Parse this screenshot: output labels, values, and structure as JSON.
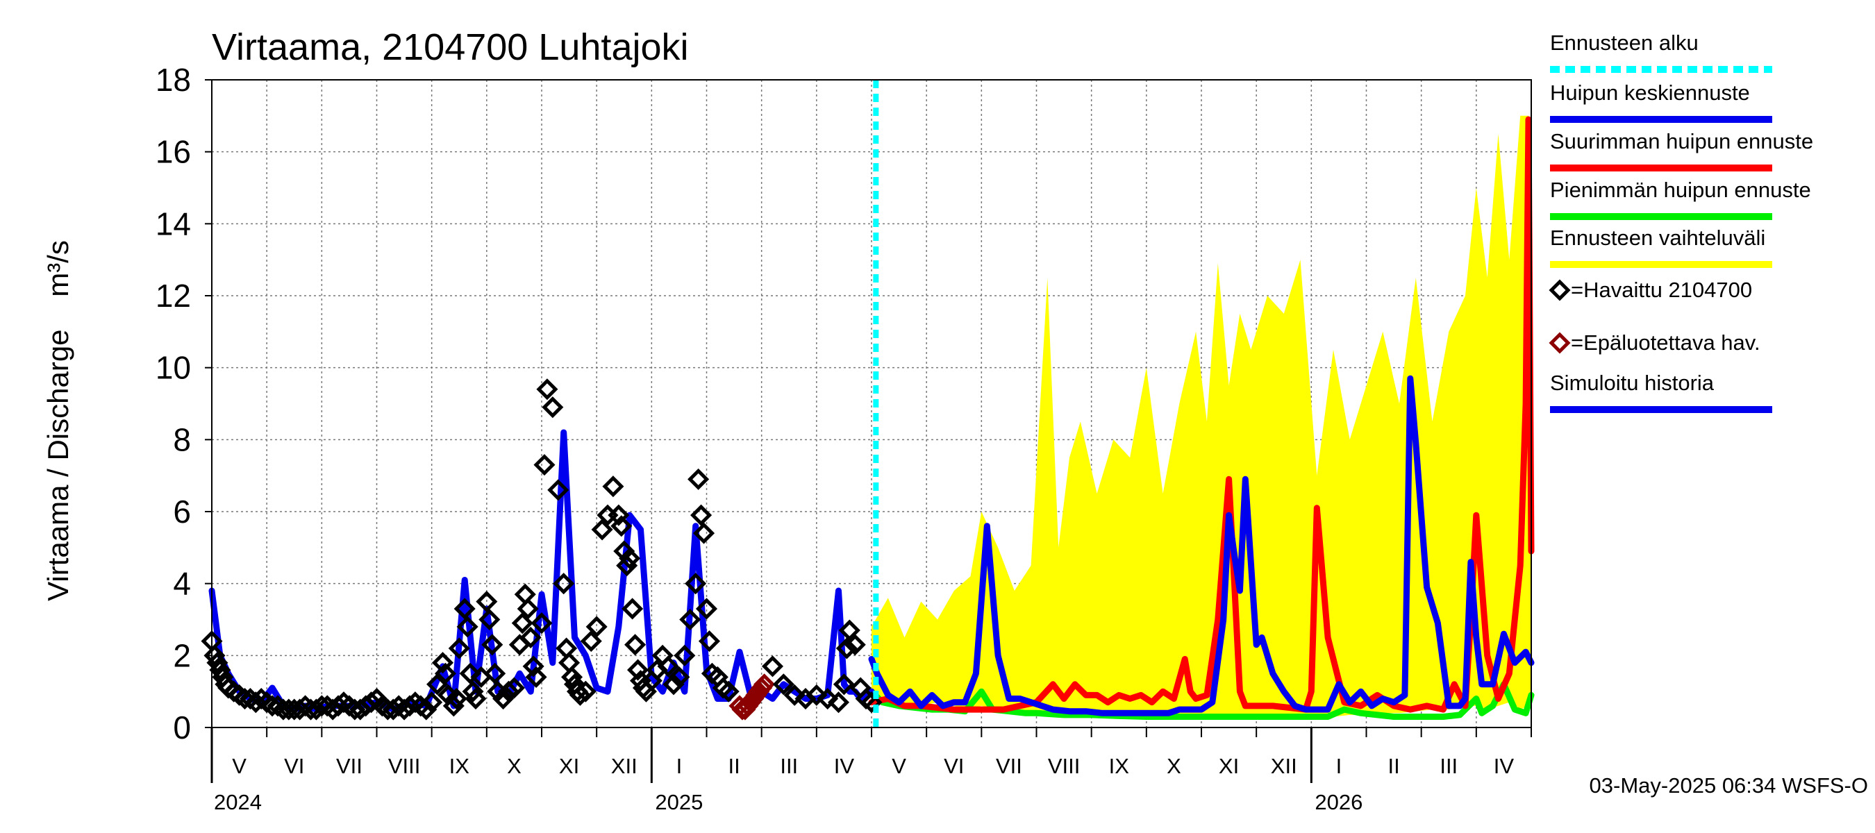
{
  "chart_data": {
    "type": "area",
    "title": "Virtaama, 2104700 Luhtajoki",
    "ylabel": "Virtaama / Discharge    m³/s",
    "ylim": [
      0,
      18
    ],
    "yticks": [
      0,
      2,
      4,
      6,
      8,
      10,
      12,
      14,
      16,
      18
    ],
    "x_unit": "months since 2024-04-01",
    "xlim": [
      0,
      24
    ],
    "forecast_start": 12.08,
    "month_labels": [
      {
        "label": "V",
        "center": 0.5
      },
      {
        "label": "VI",
        "center": 1.5
      },
      {
        "label": "VII",
        "center": 2.5
      },
      {
        "label": "VIII",
        "center": 3.5
      },
      {
        "label": "IX",
        "center": 4.5
      },
      {
        "label": "X",
        "center": 5.5
      },
      {
        "label": "XI",
        "center": 6.5
      },
      {
        "label": "XII",
        "center": 7.5
      },
      {
        "label": "I",
        "center": 8.5
      },
      {
        "label": "II",
        "center": 9.5
      },
      {
        "label": "III",
        "center": 10.5
      },
      {
        "label": "IV",
        "center": 11.5
      },
      {
        "label": "V",
        "center": 12.5
      },
      {
        "label": "VI",
        "center": 13.5
      },
      {
        "label": "VII",
        "center": 14.5
      },
      {
        "label": "VIII",
        "center": 15.5
      },
      {
        "label": "IX",
        "center": 16.5
      },
      {
        "label": "X",
        "center": 17.5
      },
      {
        "label": "XI",
        "center": 18.5
      },
      {
        "label": "XII",
        "center": 19.5
      },
      {
        "label": "I",
        "center": 20.5
      },
      {
        "label": "II",
        "center": 21.5
      },
      {
        "label": "III",
        "center": 22.5
      },
      {
        "label": "IV",
        "center": 23.5
      }
    ],
    "year_labels": [
      {
        "label": "2024",
        "at": 0
      },
      {
        "label": "2025",
        "at": 8.5
      },
      {
        "label": "2026",
        "at": 20.5
      }
    ],
    "year_boundaries": [
      8.0,
      20.0
    ],
    "series": [
      {
        "name": "Ennusteen vaihteluväli",
        "kind": "band",
        "color": "#ffff00",
        "x": [
          12.0,
          12.3,
          12.6,
          12.9,
          13.2,
          13.5,
          13.8,
          14.0,
          14.3,
          14.6,
          14.9,
          15.2,
          15.4,
          15.6,
          15.8,
          16.1,
          16.4,
          16.7,
          17.0,
          17.3,
          17.6,
          17.9,
          18.1,
          18.3,
          18.5,
          18.7,
          18.9,
          19.2,
          19.5,
          19.8,
          20.1,
          20.4,
          20.7,
          21.0,
          21.3,
          21.6,
          21.9,
          22.2,
          22.5,
          22.8,
          23.0,
          23.2,
          23.4,
          23.6,
          23.8,
          23.95,
          24.0
        ],
        "upper": [
          2.8,
          3.6,
          2.5,
          3.5,
          3.0,
          3.8,
          4.2,
          6.0,
          5.0,
          3.8,
          4.5,
          12.5,
          5.0,
          7.5,
          8.5,
          6.5,
          8.0,
          7.5,
          10.0,
          6.5,
          9.0,
          11.0,
          8.5,
          12.9,
          9.5,
          11.5,
          10.5,
          12.0,
          11.5,
          13.0,
          7.0,
          10.5,
          8.0,
          9.5,
          11.0,
          9.0,
          12.5,
          8.5,
          11.0,
          12.0,
          15.0,
          12.5,
          16.5,
          13.0,
          17.0,
          17.0,
          16.5
        ],
        "lower": [
          0.9,
          0.7,
          0.6,
          0.6,
          0.7,
          0.6,
          0.5,
          0.6,
          0.5,
          0.5,
          0.4,
          0.4,
          0.4,
          0.4,
          0.35,
          0.35,
          0.35,
          0.3,
          0.3,
          0.3,
          0.3,
          0.3,
          0.3,
          0.3,
          0.3,
          0.3,
          0.3,
          0.3,
          0.3,
          0.3,
          0.3,
          0.3,
          0.35,
          0.35,
          0.4,
          0.4,
          0.45,
          0.5,
          0.5,
          0.6,
          0.6,
          0.5,
          0.6,
          0.7,
          0.5,
          0.6,
          0.7
        ]
      },
      {
        "name": "Pienimmän huipun ennuste",
        "kind": "line",
        "color": "#00ee00",
        "x": [
          12.0,
          12.2,
          12.5,
          12.8,
          13.1,
          13.4,
          13.7,
          14.0,
          14.2,
          14.5,
          14.8,
          15.0,
          15.5,
          16.0,
          16.5,
          17.0,
          17.5,
          18.0,
          18.5,
          19.0,
          19.5,
          20.0,
          20.3,
          20.6,
          20.9,
          21.2,
          21.5,
          21.8,
          22.1,
          22.4,
          22.7,
          23.0,
          23.1,
          23.3,
          23.5,
          23.7,
          23.9,
          24.0
        ],
        "y": [
          1.0,
          0.7,
          0.6,
          0.55,
          0.5,
          0.5,
          0.45,
          1.0,
          0.5,
          0.45,
          0.4,
          0.4,
          0.35,
          0.35,
          0.32,
          0.3,
          0.3,
          0.3,
          0.3,
          0.3,
          0.3,
          0.3,
          0.3,
          0.5,
          0.4,
          0.35,
          0.3,
          0.3,
          0.3,
          0.3,
          0.35,
          0.8,
          0.4,
          0.6,
          1.2,
          0.5,
          0.4,
          0.9
        ]
      },
      {
        "name": "Suurimman huipun ennuste",
        "kind": "line",
        "color": "#ff0000",
        "x": [
          12.0,
          12.3,
          12.6,
          12.9,
          13.2,
          13.5,
          13.8,
          14.1,
          14.4,
          14.7,
          15.0,
          15.3,
          15.5,
          15.7,
          15.9,
          16.1,
          16.3,
          16.5,
          16.7,
          16.9,
          17.1,
          17.3,
          17.5,
          17.7,
          17.8,
          17.9,
          18.1,
          18.3,
          18.5,
          18.6,
          18.7,
          18.8,
          19.0,
          19.3,
          19.6,
          19.9,
          20.0,
          20.1,
          20.3,
          20.6,
          20.9,
          21.2,
          21.5,
          21.8,
          22.1,
          22.4,
          22.6,
          22.8,
          22.9,
          23.0,
          23.2,
          23.4,
          23.6,
          23.8,
          23.9,
          23.95,
          24.0
        ],
        "y": [
          0.7,
          0.8,
          0.6,
          0.6,
          0.55,
          0.5,
          0.5,
          0.5,
          0.5,
          0.6,
          0.7,
          1.2,
          0.8,
          1.2,
          0.9,
          0.9,
          0.7,
          0.9,
          0.8,
          0.9,
          0.7,
          1.0,
          0.8,
          1.9,
          1.0,
          0.8,
          0.9,
          3.0,
          6.9,
          4.0,
          1.0,
          0.6,
          0.6,
          0.6,
          0.55,
          0.5,
          1.0,
          6.1,
          2.5,
          0.7,
          0.6,
          0.9,
          0.6,
          0.5,
          0.6,
          0.5,
          1.2,
          0.6,
          3.0,
          5.9,
          2.0,
          0.8,
          1.5,
          4.5,
          9.0,
          16.9,
          4.9
        ]
      },
      {
        "name": "Huipun keskiennuste",
        "kind": "line",
        "color": "#0000ee",
        "x": [
          12.0,
          12.1,
          12.3,
          12.5,
          12.7,
          12.9,
          13.1,
          13.3,
          13.5,
          13.7,
          13.9,
          14.1,
          14.3,
          14.5,
          14.7,
          14.9,
          15.1,
          15.3,
          15.6,
          15.9,
          16.2,
          16.5,
          16.8,
          17.1,
          17.4,
          17.6,
          17.8,
          18.0,
          18.2,
          18.4,
          18.5,
          18.6,
          18.7,
          18.8,
          19.0,
          19.1,
          19.3,
          19.5,
          19.7,
          19.9,
          20.1,
          20.3,
          20.5,
          20.7,
          20.9,
          21.1,
          21.3,
          21.5,
          21.6,
          21.7,
          21.8,
          21.9,
          22.1,
          22.3,
          22.5,
          22.7,
          22.8,
          22.9,
          23.0,
          23.1,
          23.3,
          23.5,
          23.7,
          23.9,
          24.0
        ],
        "y": [
          1.9,
          1.5,
          0.9,
          0.7,
          1.0,
          0.6,
          0.9,
          0.6,
          0.7,
          0.7,
          1.5,
          5.6,
          2.0,
          0.8,
          0.8,
          0.7,
          0.6,
          0.5,
          0.45,
          0.45,
          0.4,
          0.4,
          0.4,
          0.4,
          0.4,
          0.5,
          0.5,
          0.5,
          0.7,
          3.0,
          5.9,
          4.8,
          3.8,
          6.9,
          2.3,
          2.5,
          1.5,
          1.0,
          0.6,
          0.5,
          0.5,
          0.5,
          1.2,
          0.7,
          1.0,
          0.6,
          0.8,
          0.7,
          0.8,
          0.9,
          9.7,
          7.9,
          3.9,
          2.9,
          0.6,
          0.6,
          0.8,
          4.6,
          2.5,
          1.2,
          1.2,
          2.6,
          1.8,
          2.1,
          1.8
        ]
      },
      {
        "name": "Simuloitu historia",
        "kind": "line",
        "color": "#0000ee",
        "x": [
          0.0,
          0.15,
          0.3,
          0.5,
          0.7,
          0.9,
          1.1,
          1.3,
          1.5,
          1.7,
          1.9,
          2.1,
          2.4,
          2.7,
          3.0,
          3.3,
          3.6,
          3.9,
          4.2,
          4.4,
          4.6,
          4.8,
          5.0,
          5.2,
          5.4,
          5.6,
          5.8,
          6.0,
          6.2,
          6.4,
          6.6,
          6.8,
          7.0,
          7.2,
          7.4,
          7.6,
          7.8,
          8.0,
          8.2,
          8.4,
          8.6,
          8.8,
          9.0,
          9.2,
          9.4,
          9.6,
          9.8,
          10.0,
          10.2,
          10.4,
          10.6,
          10.8,
          11.0,
          11.2,
          11.4,
          11.5,
          11.6,
          11.7,
          11.8,
          12.0
        ],
        "y": [
          3.8,
          2.0,
          1.5,
          1.0,
          0.8,
          0.7,
          1.1,
          0.6,
          0.5,
          0.6,
          0.5,
          0.6,
          0.6,
          0.6,
          0.7,
          0.5,
          0.7,
          0.6,
          1.7,
          0.6,
          4.1,
          1.0,
          3.3,
          1.0,
          0.9,
          1.5,
          1.0,
          3.7,
          1.8,
          8.2,
          2.5,
          2.0,
          1.1,
          1.0,
          2.8,
          5.9,
          5.5,
          1.4,
          1.0,
          1.8,
          1.0,
          5.6,
          1.6,
          0.8,
          0.8,
          2.1,
          0.9,
          1.0,
          0.8,
          1.2,
          1.0,
          0.8,
          0.8,
          0.9,
          3.8,
          1.2,
          1.0,
          1.0,
          0.8,
          1.0
        ]
      },
      {
        "name": "Havaittu 2104700",
        "kind": "markers",
        "color": "#000000",
        "x": [
          0.0,
          0.05,
          0.1,
          0.15,
          0.2,
          0.25,
          0.3,
          0.4,
          0.5,
          0.6,
          0.7,
          0.8,
          0.9,
          1.0,
          1.1,
          1.2,
          1.3,
          1.4,
          1.5,
          1.6,
          1.7,
          1.8,
          1.9,
          2.0,
          2.1,
          2.2,
          2.3,
          2.4,
          2.5,
          2.6,
          2.7,
          2.8,
          2.9,
          3.0,
          3.1,
          3.2,
          3.3,
          3.4,
          3.5,
          3.6,
          3.7,
          3.8,
          3.9,
          4.0,
          4.1,
          4.2,
          4.25,
          4.3,
          4.4,
          4.45,
          4.5,
          4.6,
          4.65,
          4.7,
          4.75,
          4.8,
          4.9,
          5.0,
          5.05,
          5.1,
          5.15,
          5.2,
          5.3,
          5.4,
          5.5,
          5.6,
          5.65,
          5.7,
          5.75,
          5.8,
          5.85,
          5.9,
          6.0,
          6.05,
          6.1,
          6.2,
          6.3,
          6.4,
          6.45,
          6.5,
          6.55,
          6.6,
          6.65,
          6.7,
          6.8,
          6.9,
          7.0,
          7.1,
          7.2,
          7.3,
          7.4,
          7.45,
          7.5,
          7.55,
          7.6,
          7.65,
          7.7,
          7.75,
          7.8,
          7.85,
          7.9,
          8.0,
          8.1,
          8.2,
          8.3,
          8.4,
          8.5,
          8.6,
          8.7,
          8.8,
          8.85,
          8.9,
          8.95,
          9.0,
          9.05,
          9.1,
          9.2,
          9.3,
          9.4
        ],
        "y": [
          2.4,
          2.0,
          1.8,
          1.6,
          1.4,
          1.2,
          1.1,
          1.0,
          0.9,
          0.8,
          0.8,
          0.7,
          0.8,
          0.7,
          0.6,
          0.6,
          0.5,
          0.5,
          0.5,
          0.5,
          0.6,
          0.5,
          0.5,
          0.6,
          0.6,
          0.5,
          0.6,
          0.7,
          0.6,
          0.5,
          0.5,
          0.6,
          0.7,
          0.8,
          0.6,
          0.5,
          0.5,
          0.6,
          0.5,
          0.6,
          0.7,
          0.6,
          0.5,
          0.7,
          1.2,
          1.8,
          1.5,
          0.9,
          0.6,
          0.8,
          2.2,
          3.3,
          2.8,
          1.5,
          1.0,
          0.8,
          1.4,
          3.5,
          3.0,
          2.3,
          1.5,
          1.0,
          0.8,
          1.0,
          1.1,
          2.3,
          2.9,
          3.7,
          3.3,
          2.5,
          1.7,
          1.4,
          2.9,
          7.3,
          9.4,
          8.9,
          6.6,
          4.0,
          2.2,
          1.8,
          1.4,
          1.2,
          1.0,
          0.9,
          1.0,
          2.4,
          2.8,
          5.5,
          5.9,
          6.7,
          5.9,
          5.6,
          4.9,
          4.5,
          4.7,
          3.3,
          2.3,
          1.6,
          1.3,
          1.1,
          1.0,
          1.3,
          1.6,
          2.0,
          1.7,
          1.2,
          1.4,
          2.0,
          3.0,
          4.0,
          6.9,
          5.9,
          5.4,
          3.3,
          2.4,
          1.5,
          1.4,
          1.1,
          1.0
        ]
      },
      {
        "name": "Epäluotettava hav.",
        "kind": "markers",
        "color": "#8b0000",
        "x": [
          9.6,
          9.65,
          9.7,
          9.75,
          9.8,
          9.85,
          9.9,
          9.95,
          10.0,
          10.05
        ],
        "y": [
          0.6,
          0.5,
          0.5,
          0.6,
          0.7,
          0.8,
          0.9,
          1.0,
          1.1,
          1.2
        ]
      }
    ],
    "observed_tail": {
      "x": [
        10.2,
        10.4,
        10.6,
        10.8,
        11.0,
        11.2,
        11.4,
        11.5,
        11.55,
        11.6,
        11.7,
        11.8,
        11.9,
        12.0
      ],
      "y": [
        1.7,
        1.2,
        0.9,
        0.8,
        0.9,
        0.8,
        0.7,
        1.2,
        2.2,
        2.7,
        2.3,
        1.1,
        0.8,
        0.7
      ]
    }
  },
  "legend": {
    "items": [
      {
        "label": "Ennusteen alku",
        "color": "#00ffff",
        "style": "dashed"
      },
      {
        "label": "Huipun keskiennuste",
        "color": "#0000ee",
        "style": "line"
      },
      {
        "label": "Suurimman huipun ennuste",
        "color": "#ff0000",
        "style": "line"
      },
      {
        "label": "Pienimmän huipun ennuste",
        "color": "#00ee00",
        "style": "line"
      },
      {
        "label": "Ennusteen vaihteluväli",
        "color": "#ffff00",
        "style": "line"
      },
      {
        "label": "=Havaittu 2104700",
        "color": "#000000",
        "style": "marker"
      },
      {
        "label": "=Epäluotettava hav.",
        "color": "#8b0000",
        "style": "marker"
      },
      {
        "label": "Simuloitu historia",
        "color": "#0000ee",
        "style": "line"
      }
    ]
  },
  "footer": "03-May-2025 06:34 WSFS-O"
}
